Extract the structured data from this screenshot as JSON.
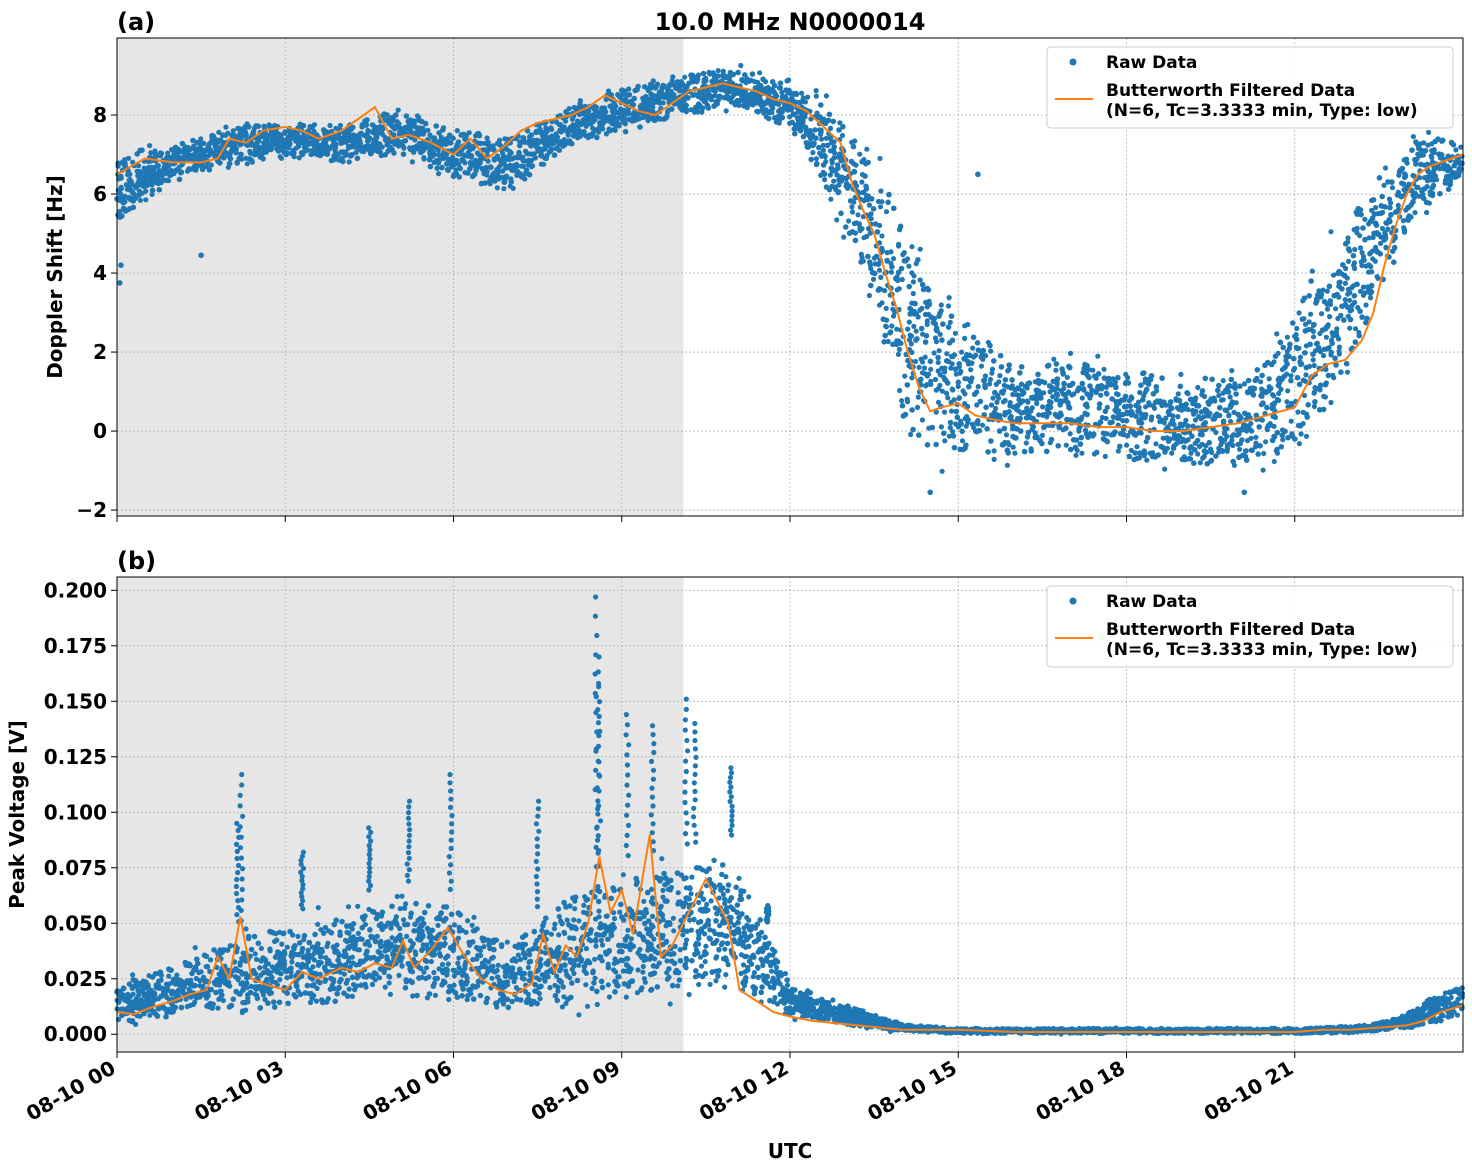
{
  "figure": {
    "title": "10.0 MHz N0000014",
    "xlabel": "UTC",
    "colors": {
      "raw": "#1f77b4",
      "filtered": "#ff7f0e",
      "shade": "#e6e6e6",
      "grid": "#b0b0b0"
    },
    "legend": {
      "raw_label": "Raw Data",
      "filtered_label_line1": "Butterworth Filtered Data",
      "filtered_label_line2": "(N=6, Tc=3.3333 min, Type: low)",
      "placement": "upper right"
    },
    "shaded_region_hours": [
      0,
      10.1
    ]
  },
  "chart_data": [
    {
      "panel": "(a)",
      "type": "scatter",
      "ylabel": "Doppler Shift [Hz]",
      "xlim_hours": [
        0,
        24
      ],
      "ylim": [
        -2.15,
        9.95
      ],
      "yticks": [
        -2,
        0,
        2,
        4,
        6,
        8
      ],
      "ytick_labels": [
        "−2",
        "0",
        "2",
        "4",
        "6",
        "8"
      ],
      "grid": true,
      "series": [
        {
          "name": "Butterworth Filtered Data",
          "kind": "line",
          "x_hours": [
            0,
            0.5,
            1,
            1.5,
            1.8,
            2,
            2.3,
            2.6,
            3,
            3.3,
            3.6,
            4,
            4.3,
            4.6,
            4.9,
            5.2,
            5.6,
            6,
            6.3,
            6.6,
            6.9,
            7.2,
            7.5,
            7.8,
            8.1,
            8.4,
            8.7,
            9,
            9.3,
            9.6,
            9.9,
            10.2,
            10.5,
            10.8,
            11.1,
            11.4,
            11.7,
            12,
            12.3,
            12.6,
            12.9,
            13.1,
            13.3,
            13.5,
            13.7,
            13.9,
            14.1,
            14.3,
            14.5,
            14.7,
            15,
            15.3,
            15.6,
            16,
            16.5,
            17,
            17.5,
            18,
            18.5,
            19,
            19.5,
            20,
            20.5,
            21,
            21.3,
            21.6,
            21.9,
            22.2,
            22.4,
            22.6,
            22.8,
            23,
            23.2,
            23.4,
            23.6,
            23.8,
            24
          ],
          "y": [
            6.5,
            6.9,
            6.8,
            6.8,
            6.9,
            7.4,
            7.3,
            7.6,
            7.7,
            7.6,
            7.4,
            7.6,
            7.9,
            8.2,
            7.4,
            7.5,
            7.3,
            7.0,
            7.4,
            6.9,
            7.2,
            7.6,
            7.8,
            7.9,
            8.0,
            8.2,
            8.5,
            8.3,
            8.1,
            8.0,
            8.3,
            8.6,
            8.7,
            8.8,
            8.7,
            8.6,
            8.4,
            8.3,
            8.1,
            7.7,
            7.3,
            6.3,
            5.6,
            5.0,
            4.0,
            3.1,
            2.0,
            1.1,
            0.5,
            0.6,
            0.7,
            0.4,
            0.3,
            0.2,
            0.2,
            0.2,
            0.1,
            0.1,
            0.0,
            0.0,
            0.1,
            0.2,
            0.4,
            0.6,
            1.4,
            1.7,
            1.8,
            2.3,
            3.0,
            4.2,
            5.2,
            6.0,
            6.5,
            6.7,
            6.8,
            6.9,
            7.0
          ]
        },
        {
          "name": "Raw Data",
          "kind": "scatter",
          "envelope": {
            "x_hours": [
              0,
              1,
              2,
              3,
              4,
              5,
              6,
              7,
              8,
              9,
              10,
              11,
              12,
              12.5,
              13,
              13.5,
              14,
              14.5,
              15,
              16,
              17,
              18,
              19,
              20,
              20.5,
              21,
              21.5,
              22,
              22.5,
              23,
              23.5,
              24
            ],
            "upper": [
              7.4,
              7.4,
              7.9,
              8.0,
              7.9,
              8.4,
              7.8,
              7.7,
              8.3,
              8.9,
              9.2,
              9.4,
              9.0,
              8.8,
              8.4,
              7.8,
              6.5,
              4.8,
              3.5,
              2.2,
              2.4,
              2.1,
              1.8,
              1.9,
              2.2,
              4.0,
              5.2,
              6.4,
              7.2,
              7.8,
              7.8,
              7.4
            ],
            "lower": [
              5.0,
              6.1,
              6.5,
              6.8,
              6.6,
              6.8,
              6.2,
              5.8,
              7.0,
              7.3,
              7.8,
              8.0,
              7.4,
              6.2,
              4.5,
              2.5,
              -0.8,
              -1.5,
              -1.2,
              -1.1,
              -1.0,
              -1.2,
              -1.3,
              -1.3,
              -1.2,
              -1.2,
              -0.5,
              1.0,
              2.8,
              4.3,
              5.5,
              6.2
            ]
          },
          "outliers": [
            [
              0.05,
              3.75
            ],
            [
              0.07,
              4.2
            ],
            [
              1.5,
              4.45
            ],
            [
              14.5,
              -1.55
            ],
            [
              15.35,
              6.5
            ],
            [
              20.1,
              -1.55
            ]
          ]
        }
      ]
    },
    {
      "panel": "(b)",
      "type": "scatter",
      "ylabel": "Peak Voltage [V]",
      "xlim_hours": [
        0,
        24
      ],
      "ylim": [
        -0.008,
        0.206
      ],
      "yticks": [
        0.0,
        0.025,
        0.05,
        0.075,
        0.1,
        0.125,
        0.15,
        0.175,
        0.2
      ],
      "ytick_labels": [
        "0.000",
        "0.025",
        "0.050",
        "0.075",
        "0.100",
        "0.125",
        "0.150",
        "0.175",
        "0.200"
      ],
      "xticks_hours": [
        0,
        3,
        6,
        9,
        12,
        15,
        18,
        21
      ],
      "xtick_labels": [
        "08-10 00",
        "08-10 03",
        "08-10 06",
        "08-10 09",
        "08-10 12",
        "08-10 15",
        "08-10 18",
        "08-10 21"
      ],
      "grid": true,
      "series": [
        {
          "name": "Butterworth Filtered Data",
          "kind": "line",
          "x_hours": [
            0,
            0.3,
            0.6,
            1,
            1.3,
            1.6,
            1.8,
            2,
            2.2,
            2.4,
            2.7,
            3,
            3.3,
            3.6,
            4,
            4.3,
            4.6,
            4.9,
            5.1,
            5.3,
            5.6,
            5.9,
            6.2,
            6.5,
            6.8,
            7.1,
            7.4,
            7.6,
            7.8,
            8,
            8.2,
            8.4,
            8.6,
            8.8,
            9,
            9.2,
            9.5,
            9.7,
            9.9,
            10.1,
            10.3,
            10.5,
            10.7,
            10.9,
            11.1,
            11.4,
            11.7,
            12,
            12.4,
            12.8,
            13.2,
            13.6,
            14,
            15,
            16,
            17,
            18,
            19,
            20,
            21,
            21.5,
            22,
            22.5,
            23,
            23.3,
            23.6,
            24
          ],
          "y": [
            0.01,
            0.009,
            0.012,
            0.015,
            0.018,
            0.02,
            0.035,
            0.025,
            0.053,
            0.025,
            0.022,
            0.02,
            0.028,
            0.025,
            0.03,
            0.028,
            0.032,
            0.03,
            0.042,
            0.03,
            0.038,
            0.048,
            0.035,
            0.025,
            0.02,
            0.018,
            0.023,
            0.045,
            0.028,
            0.04,
            0.035,
            0.05,
            0.08,
            0.055,
            0.065,
            0.045,
            0.09,
            0.035,
            0.04,
            0.05,
            0.06,
            0.07,
            0.06,
            0.05,
            0.02,
            0.015,
            0.01,
            0.008,
            0.006,
            0.005,
            0.004,
            0.003,
            0.002,
            0.002,
            0.001,
            0.001,
            0.001,
            0.001,
            0.001,
            0.001,
            0.002,
            0.002,
            0.003,
            0.004,
            0.006,
            0.01,
            0.013
          ]
        },
        {
          "name": "Raw Data",
          "kind": "scatter",
          "envelope": {
            "x_hours": [
              0,
              1,
              2,
              3,
              4,
              5,
              6,
              7,
              8,
              9,
              10,
              11,
              12,
              12.5,
              13,
              13.5,
              14,
              15,
              16,
              17,
              18,
              19,
              20,
              21,
              22,
              22.5,
              23,
              23.5,
              24
            ],
            "upper": [
              0.026,
              0.035,
              0.05,
              0.055,
              0.06,
              0.07,
              0.065,
              0.045,
              0.07,
              0.08,
              0.085,
              0.09,
              0.025,
              0.02,
              0.015,
              0.01,
              0.005,
              0.003,
              0.003,
              0.003,
              0.003,
              0.003,
              0.003,
              0.003,
              0.004,
              0.006,
              0.01,
              0.02,
              0.025
            ],
            "lower": [
              0.002,
              0.003,
              0.004,
              0.005,
              0.006,
              0.008,
              0.008,
              0.006,
              0.006,
              0.008,
              0.01,
              0.012,
              0.005,
              0.004,
              0.002,
              0.001,
              0.001,
              0.0,
              0.0,
              0.0,
              0.0,
              0.0,
              0.0,
              0.0,
              0.0,
              0.001,
              0.001,
              0.003,
              0.005
            ]
          },
          "spikes": [
            [
              2.15,
              0.095
            ],
            [
              2.22,
              0.117
            ],
            [
              3.3,
              0.082
            ],
            [
              4.5,
              0.093
            ],
            [
              5.2,
              0.105
            ],
            [
              5.95,
              0.117
            ],
            [
              7.5,
              0.105
            ],
            [
              8.55,
              0.197
            ],
            [
              8.6,
              0.17
            ],
            [
              8.57,
              0.158
            ],
            [
              9.1,
              0.144
            ],
            [
              9.55,
              0.139
            ],
            [
              10.15,
              0.151
            ],
            [
              10.3,
              0.14
            ],
            [
              10.95,
              0.12
            ],
            [
              11.6,
              0.058
            ]
          ]
        }
      ]
    }
  ]
}
